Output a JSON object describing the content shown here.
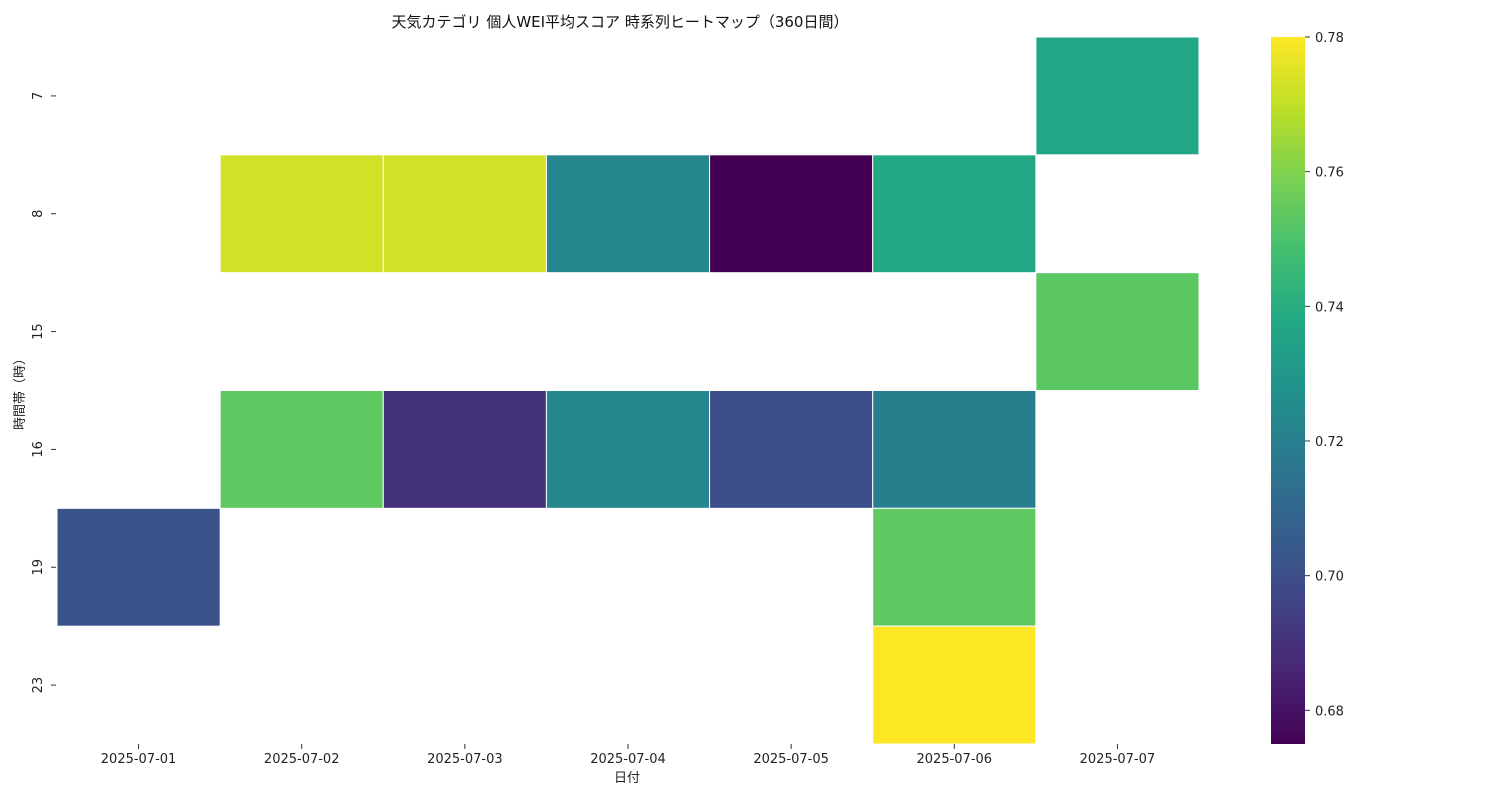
{
  "chart_data": {
    "type": "heatmap",
    "title": "天気カテゴリ 個人WEI平均スコア 時系列ヒートマップ（360日間）",
    "xlabel": "日付",
    "ylabel": "時間帯（時）",
    "x_categories": [
      "2025-07-01",
      "2025-07-02",
      "2025-07-03",
      "2025-07-04",
      "2025-07-05",
      "2025-07-06",
      "2025-07-07"
    ],
    "y_categories": [
      "7",
      "8",
      "15",
      "16",
      "19",
      "23"
    ],
    "values": [
      [
        null,
        null,
        null,
        null,
        null,
        null,
        0.737
      ],
      [
        null,
        0.773,
        0.773,
        0.723,
        0.675,
        0.738,
        null
      ],
      [
        null,
        null,
        null,
        null,
        null,
        null,
        0.753
      ],
      [
        null,
        0.754,
        0.69,
        0.723,
        0.7,
        0.72,
        null
      ],
      [
        0.701,
        null,
        null,
        null,
        null,
        0.754,
        null
      ],
      [
        null,
        null,
        null,
        null,
        null,
        0.78,
        null
      ]
    ],
    "colormap": "viridis",
    "colorbar": {
      "range": [
        0.675,
        0.78
      ],
      "ticks": [
        "0.68",
        "0.70",
        "0.72",
        "0.74",
        "0.76",
        "0.78"
      ]
    },
    "grid": false,
    "legend": "colorbar-right"
  }
}
